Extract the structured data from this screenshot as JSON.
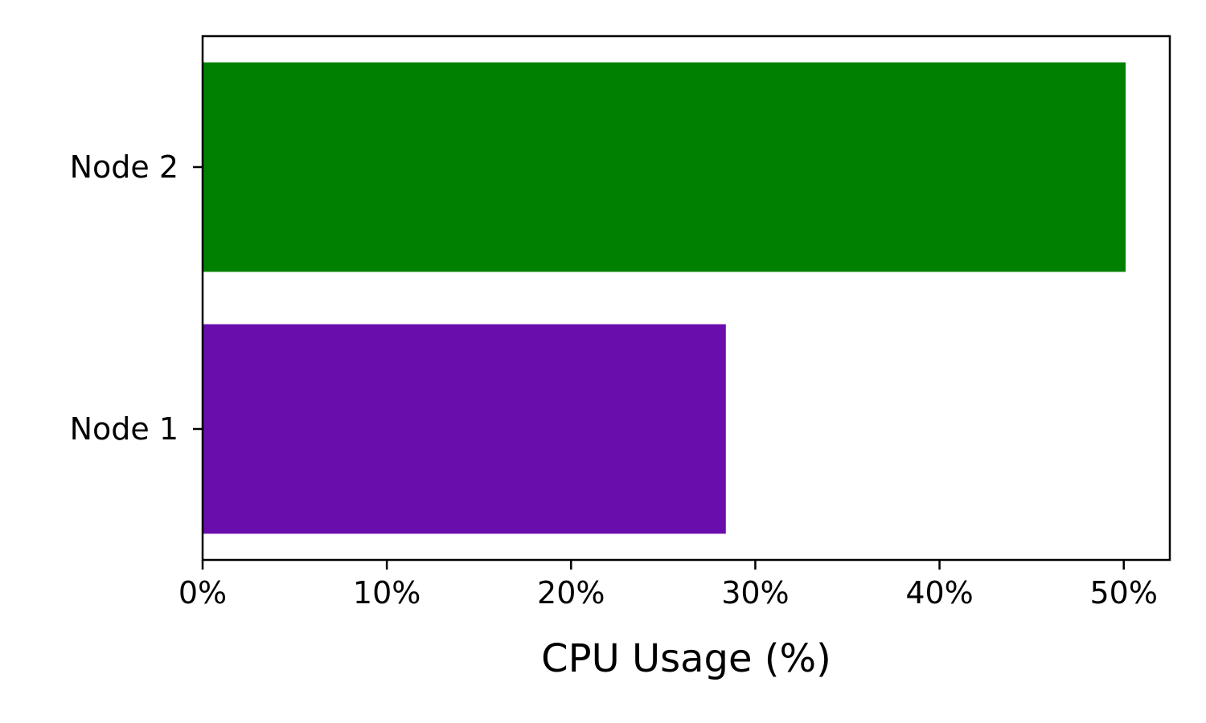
{
  "chart_data": {
    "type": "bar",
    "orientation": "horizontal",
    "categories": [
      "Node 1",
      "Node 2"
    ],
    "values": [
      28.4,
      50.1
    ],
    "colors": [
      "#6a0dad",
      "#008000"
    ],
    "xlabel": "CPU Usage (%)",
    "ylabel": "",
    "xlim": [
      0,
      52.5
    ],
    "xticks": [
      0,
      10,
      20,
      30,
      40,
      50
    ],
    "xtick_labels": [
      "0%",
      "10%",
      "20%",
      "30%",
      "40%",
      "50%"
    ],
    "grid": false,
    "legend": "none"
  }
}
